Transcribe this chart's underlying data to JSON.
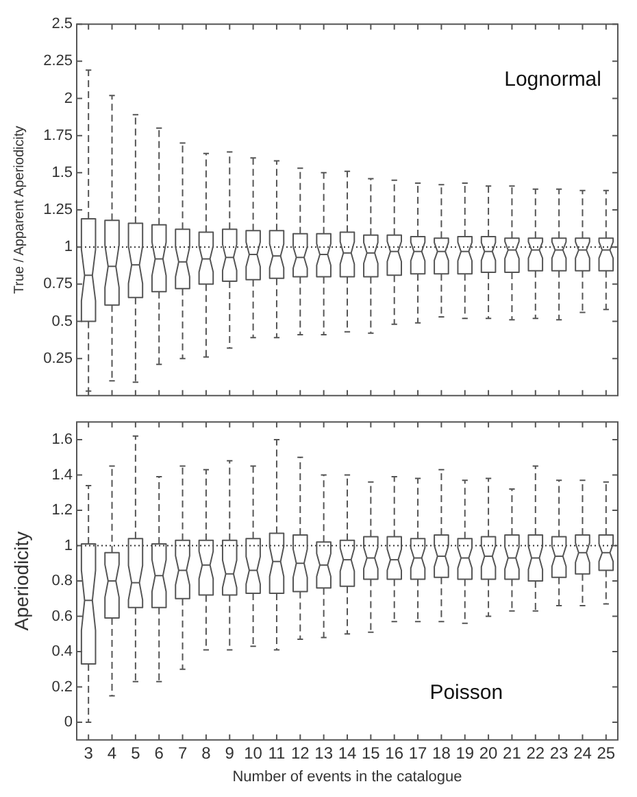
{
  "chart_data": [
    {
      "type": "box",
      "ylabel": "True / Apparent Aperiodicity",
      "categories": [
        "3",
        "4",
        "5",
        "6",
        "7",
        "8",
        "9",
        "10",
        "11",
        "12",
        "13",
        "14",
        "15",
        "16",
        "17",
        "18",
        "19",
        "20",
        "21",
        "22",
        "23",
        "24",
        "25"
      ],
      "ylim": [
        0,
        2.5
      ],
      "yticks": [
        0.25,
        0.5,
        0.75,
        1,
        1.25,
        1.5,
        1.75,
        2,
        2.25,
        2.5
      ],
      "tick_labels": "y",
      "grid": false,
      "annotations": [
        "Lognormal"
      ],
      "ref_lines": [
        {
          "axis": "y",
          "value": 1,
          "line_style": "dotted"
        }
      ],
      "series": [
        {
          "color": "#555555",
          "boxes": [
            {
              "low": 0.03,
              "q1": 0.5,
              "median": 0.81,
              "q3": 1.19,
              "high": 2.19
            },
            {
              "low": 0.1,
              "q1": 0.61,
              "median": 0.87,
              "q3": 1.18,
              "high": 2.02
            },
            {
              "low": 0.09,
              "q1": 0.66,
              "median": 0.88,
              "q3": 1.16,
              "high": 1.89
            },
            {
              "low": 0.21,
              "q1": 0.7,
              "median": 0.92,
              "q3": 1.15,
              "high": 1.8
            },
            {
              "low": 0.25,
              "q1": 0.72,
              "median": 0.9,
              "q3": 1.12,
              "high": 1.7
            },
            {
              "low": 0.26,
              "q1": 0.75,
              "median": 0.92,
              "q3": 1.1,
              "high": 1.63
            },
            {
              "low": 0.32,
              "q1": 0.77,
              "median": 0.93,
              "q3": 1.12,
              "high": 1.64
            },
            {
              "low": 0.39,
              "q1": 0.78,
              "median": 0.95,
              "q3": 1.11,
              "high": 1.6
            },
            {
              "low": 0.39,
              "q1": 0.79,
              "median": 0.94,
              "q3": 1.11,
              "high": 1.58
            },
            {
              "low": 0.41,
              "q1": 0.8,
              "median": 0.93,
              "q3": 1.09,
              "high": 1.53
            },
            {
              "low": 0.41,
              "q1": 0.8,
              "median": 0.95,
              "q3": 1.09,
              "high": 1.5
            },
            {
              "low": 0.43,
              "q1": 0.8,
              "median": 0.96,
              "q3": 1.1,
              "high": 1.51
            },
            {
              "low": 0.42,
              "q1": 0.8,
              "median": 0.96,
              "q3": 1.08,
              "high": 1.46
            },
            {
              "low": 0.48,
              "q1": 0.81,
              "median": 0.97,
              "q3": 1.08,
              "high": 1.45
            },
            {
              "low": 0.49,
              "q1": 0.82,
              "median": 0.97,
              "q3": 1.07,
              "high": 1.43
            },
            {
              "low": 0.53,
              "q1": 0.82,
              "median": 0.97,
              "q3": 1.06,
              "high": 1.42
            },
            {
              "low": 0.52,
              "q1": 0.82,
              "median": 0.97,
              "q3": 1.07,
              "high": 1.43
            },
            {
              "low": 0.52,
              "q1": 0.83,
              "median": 0.97,
              "q3": 1.07,
              "high": 1.41
            },
            {
              "low": 0.51,
              "q1": 0.83,
              "median": 0.98,
              "q3": 1.06,
              "high": 1.41
            },
            {
              "low": 0.52,
              "q1": 0.84,
              "median": 0.98,
              "q3": 1.06,
              "high": 1.39
            },
            {
              "low": 0.51,
              "q1": 0.84,
              "median": 0.98,
              "q3": 1.06,
              "high": 1.39
            },
            {
              "low": 0.56,
              "q1": 0.84,
              "median": 0.98,
              "q3": 1.06,
              "high": 1.38
            },
            {
              "low": 0.58,
              "q1": 0.84,
              "median": 0.98,
              "q3": 1.06,
              "high": 1.38
            }
          ]
        }
      ]
    },
    {
      "type": "box",
      "xlabel": "Number of events in the catalogue",
      "ylabel": "Aperiodicity",
      "categories": [
        "3",
        "4",
        "5",
        "6",
        "7",
        "8",
        "9",
        "10",
        "11",
        "12",
        "13",
        "14",
        "15",
        "16",
        "17",
        "18",
        "19",
        "20",
        "21",
        "22",
        "23",
        "24",
        "25"
      ],
      "ylim": [
        -0.1,
        1.7
      ],
      "yticks": [
        0,
        0.2,
        0.4,
        0.6,
        0.8,
        1,
        1.2,
        1.4,
        1.6
      ],
      "grid": false,
      "annotations": [
        "Poisson"
      ],
      "ref_lines": [
        {
          "axis": "y",
          "value": 1,
          "line_style": "dotted"
        }
      ],
      "series": [
        {
          "color": "#555555",
          "boxes": [
            {
              "low": 0,
              "q1": 0.33,
              "median": 0.69,
              "q3": 1.01,
              "high": 1.34
            },
            {
              "low": 0.15,
              "q1": 0.59,
              "median": 0.8,
              "q3": 0.96,
              "high": 1.45
            },
            {
              "low": 0.23,
              "q1": 0.65,
              "median": 0.79,
              "q3": 1.04,
              "high": 1.62
            },
            {
              "low": 0.23,
              "q1": 0.65,
              "median": 0.83,
              "q3": 1.01,
              "high": 1.39
            },
            {
              "low": 0.3,
              "q1": 0.7,
              "median": 0.86,
              "q3": 1.03,
              "high": 1.45
            },
            {
              "low": 0.41,
              "q1": 0.72,
              "median": 0.89,
              "q3": 1.03,
              "high": 1.43
            },
            {
              "low": 0.41,
              "q1": 0.72,
              "median": 0.84,
              "q3": 1.03,
              "high": 1.48
            },
            {
              "low": 0.43,
              "q1": 0.73,
              "median": 0.86,
              "q3": 1.04,
              "high": 1.45
            },
            {
              "low": 0.41,
              "q1": 0.73,
              "median": 0.91,
              "q3": 1.07,
              "high": 1.6
            },
            {
              "low": 0.47,
              "q1": 0.74,
              "median": 0.9,
              "q3": 1.06,
              "high": 1.5
            },
            {
              "low": 0.48,
              "q1": 0.76,
              "median": 0.89,
              "q3": 1.02,
              "high": 1.4
            },
            {
              "low": 0.5,
              "q1": 0.77,
              "median": 0.92,
              "q3": 1.03,
              "high": 1.4
            },
            {
              "low": 0.51,
              "q1": 0.81,
              "median": 0.93,
              "q3": 1.05,
              "high": 1.36
            },
            {
              "low": 0.57,
              "q1": 0.81,
              "median": 0.92,
              "q3": 1.05,
              "high": 1.39
            },
            {
              "low": 0.57,
              "q1": 0.81,
              "median": 0.93,
              "q3": 1.04,
              "high": 1.38
            },
            {
              "low": 0.57,
              "q1": 0.82,
              "median": 0.94,
              "q3": 1.06,
              "high": 1.43
            },
            {
              "low": 0.56,
              "q1": 0.81,
              "median": 0.93,
              "q3": 1.04,
              "high": 1.37
            },
            {
              "low": 0.6,
              "q1": 0.81,
              "median": 0.94,
              "q3": 1.05,
              "high": 1.38
            },
            {
              "low": 0.63,
              "q1": 0.81,
              "median": 0.93,
              "q3": 1.06,
              "high": 1.32
            },
            {
              "low": 0.63,
              "q1": 0.8,
              "median": 0.93,
              "q3": 1.06,
              "high": 1.45
            },
            {
              "low": 0.66,
              "q1": 0.82,
              "median": 0.94,
              "q3": 1.05,
              "high": 1.37
            },
            {
              "low": 0.66,
              "q1": 0.84,
              "median": 0.96,
              "q3": 1.06,
              "high": 1.37
            },
            {
              "low": 0.67,
              "q1": 0.86,
              "median": 0.96,
              "q3": 1.06,
              "high": 1.36
            }
          ]
        }
      ]
    }
  ]
}
